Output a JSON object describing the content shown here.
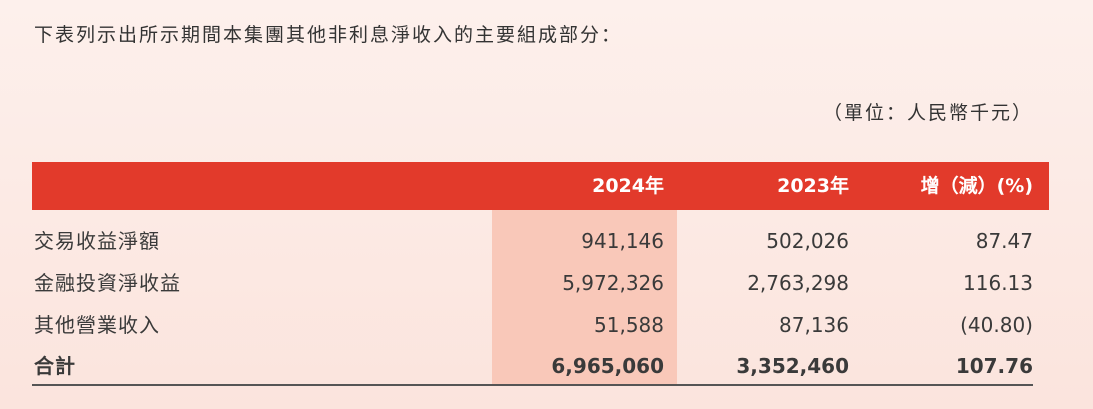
{
  "intro": "下表列示出所示期間本集團其他非利息淨收入的主要組成部分：",
  "unit": "（單位：人民幣千元）",
  "table": {
    "headers": [
      "2024年",
      "2023年",
      "增（減）(%)"
    ],
    "rows": [
      {
        "label": "交易收益淨額",
        "values": [
          "941,146",
          "502,026",
          "87.47"
        ]
      },
      {
        "label": "金融投資淨收益",
        "values": [
          "5,972,326",
          "2,763,298",
          "116.13"
        ]
      },
      {
        "label": "其他營業收入",
        "values": [
          "51,588",
          "87,136",
          "(40.80)"
        ]
      }
    ],
    "total": {
      "label": "合計",
      "values": [
        "6,965,060",
        "3,352,460",
        "107.76"
      ]
    }
  },
  "colors": {
    "header": "#e23a2b",
    "highlight": "#f9c8b9",
    "background": "#fdf0ec"
  }
}
